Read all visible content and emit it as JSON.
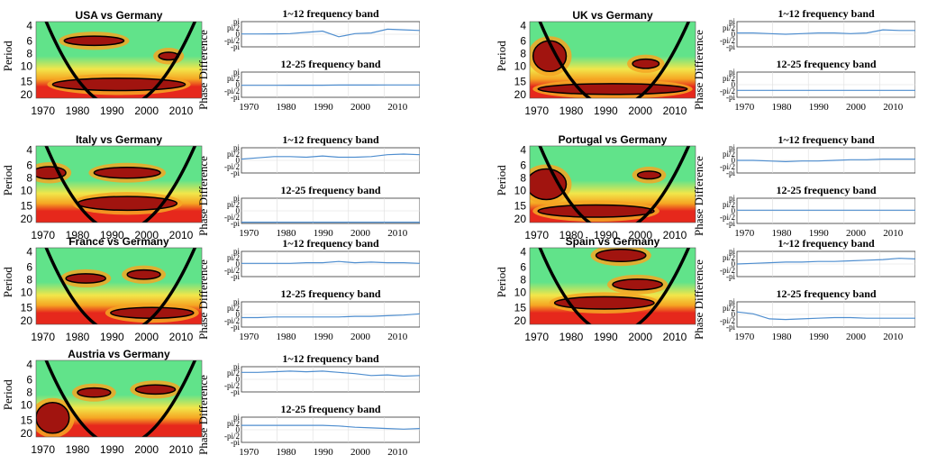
{
  "colors": {
    "cold": "#61e38a",
    "mid": "#f2e64a",
    "warm": "#f5a623",
    "hot": "#e6281c",
    "peak": "#a1140f",
    "coi": "#000000",
    "phase_line": "#4f8ecf"
  },
  "labels": {
    "period": "Period",
    "phase_difference": "Phase Difference",
    "band_1_12": "1~12 frequency band",
    "band_12_25": "12-25 frequency band",
    "pd_ticks": [
      "pi",
      "pi/2",
      "0",
      "-pi/2",
      "-pi"
    ]
  },
  "chart_data": [
    {
      "type": "heatmap",
      "title": "USA vs Germany",
      "ylabel": "Period",
      "x_ticks": [
        1970,
        1980,
        1990,
        2000,
        2010
      ],
      "y_ticks": [
        4,
        6,
        8,
        10,
        15,
        20
      ],
      "xlim": [
        1968,
        2016
      ],
      "phase_series": {
        "band_1_12": [
          0.02,
          0.02,
          0.03,
          0.05,
          0.15,
          0.25,
          -0.2,
          0.05,
          0.1,
          0.4,
          0.35,
          0.3
        ],
        "band_12_25": [
          -0.05,
          -0.05,
          -0.05,
          -0.04,
          -0.04,
          -0.04,
          -0.03,
          -0.03,
          -0.03,
          -0.02,
          -0.02,
          -0.02
        ]
      }
    },
    {
      "type": "heatmap",
      "title": "UK vs Germany",
      "ylabel": "Period",
      "x_ticks": [
        1970,
        1980,
        1990,
        2000,
        2010
      ],
      "y_ticks": [
        4,
        6,
        8,
        10,
        15,
        20
      ],
      "xlim": [
        1968,
        2016
      ],
      "phase_series": {
        "band_1_12": [
          0.1,
          0.1,
          0.05,
          0.0,
          0.05,
          0.1,
          0.1,
          0.05,
          0.1,
          0.35,
          0.3,
          0.3
        ],
        "band_12_25": [
          -0.45,
          -0.45,
          -0.45,
          -0.45,
          -0.45,
          -0.45,
          -0.45,
          -0.45,
          -0.45,
          -0.45,
          -0.45,
          -0.45
        ]
      }
    },
    {
      "type": "heatmap",
      "title": "Italy vs Germany",
      "ylabel": "Period",
      "x_ticks": [
        1970,
        1980,
        1990,
        2000,
        2010
      ],
      "y_ticks": [
        4,
        6,
        8,
        10,
        15,
        20
      ],
      "xlim": [
        1968,
        2016
      ],
      "phase_series": {
        "band_1_12": [
          0.1,
          0.2,
          0.3,
          0.3,
          0.25,
          0.35,
          0.25,
          0.25,
          0.3,
          0.45,
          0.5,
          0.45
        ],
        "band_12_25": [
          -0.9,
          -0.9,
          -0.9,
          -0.9,
          -0.9,
          -0.9,
          -0.9,
          -0.9,
          -0.9,
          -0.9,
          -0.9,
          -0.9
        ]
      }
    },
    {
      "type": "heatmap",
      "title": "Portugal vs Germany",
      "ylabel": "Period",
      "x_ticks": [
        1970,
        1980,
        1990,
        2000,
        2010
      ],
      "y_ticks": [
        4,
        6,
        8,
        10,
        15,
        20
      ],
      "xlim": [
        1968,
        2016
      ],
      "phase_series": {
        "band_1_12": [
          0.0,
          0.0,
          -0.05,
          -0.1,
          -0.05,
          -0.05,
          0.0,
          0.05,
          0.05,
          0.1,
          0.1,
          0.1
        ],
        "band_12_25": [
          0.05,
          0.05,
          0.05,
          0.05,
          0.05,
          0.05,
          0.05,
          0.05,
          0.05,
          0.05,
          0.05,
          0.05
        ]
      }
    },
    {
      "type": "heatmap",
      "title": "France vs Germany",
      "ylabel": "Period",
      "x_ticks": [
        1970,
        1980,
        1990,
        2000,
        2010
      ],
      "y_ticks": [
        4,
        6,
        8,
        10,
        15,
        20
      ],
      "xlim": [
        1968,
        2016
      ],
      "phase_series": {
        "band_1_12": [
          0.05,
          0.05,
          0.05,
          0.05,
          0.1,
          0.1,
          0.2,
          0.1,
          0.15,
          0.1,
          0.1,
          0.05
        ],
        "band_12_25": [
          -0.25,
          -0.25,
          -0.2,
          -0.2,
          -0.2,
          -0.2,
          -0.2,
          -0.15,
          -0.15,
          -0.1,
          -0.05,
          0.05
        ]
      }
    },
    {
      "type": "heatmap",
      "title": "Spain vs Germany",
      "ylabel": "Period",
      "x_ticks": [
        1970,
        1980,
        1990,
        2000,
        2010
      ],
      "y_ticks": [
        4,
        6,
        8,
        10,
        15,
        20
      ],
      "xlim": [
        1968,
        2016
      ],
      "phase_series": {
        "band_1_12": [
          0.0,
          0.05,
          0.1,
          0.15,
          0.15,
          0.2,
          0.2,
          0.25,
          0.3,
          0.35,
          0.45,
          0.4
        ],
        "band_12_25": [
          0.2,
          0.05,
          -0.35,
          -0.4,
          -0.35,
          -0.3,
          -0.25,
          -0.25,
          -0.3,
          -0.3,
          -0.3,
          -0.3
        ]
      }
    },
    {
      "type": "heatmap",
      "title": "Austria vs Germany",
      "ylabel": "Period",
      "x_ticks": [
        1970,
        1980,
        1990,
        2000,
        2010
      ],
      "y_ticks": [
        4,
        6,
        8,
        10,
        15,
        20
      ],
      "xlim": [
        1968,
        2016
      ],
      "phase_series": {
        "band_1_12": [
          0.55,
          0.55,
          0.6,
          0.65,
          0.6,
          0.65,
          0.55,
          0.45,
          0.3,
          0.35,
          0.25,
          0.3
        ],
        "band_12_25": [
          0.35,
          0.35,
          0.35,
          0.35,
          0.35,
          0.35,
          0.3,
          0.2,
          0.15,
          0.1,
          0.05,
          0.1
        ]
      }
    }
  ]
}
